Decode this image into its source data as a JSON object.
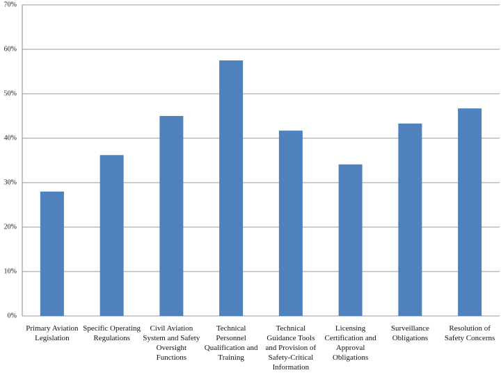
{
  "chart_data": {
    "type": "bar",
    "categories": [
      "Primary Aviation\nLegislation",
      "Specific Operating\nRegulations",
      "Civil Aviation\nSystem and Safety\nOversight\nFunctions",
      "Technical\nPersonnel\nQualification and\nTraining",
      "Technical\nGuidance Tools\nand Provision of\nSafety-Critical\nInformation",
      "Licensing\nCertification and\nApproval\nObligations",
      "Surveillance\nObligations",
      "Resolution of\nSafety Concerns"
    ],
    "values": [
      28,
      36.2,
      45,
      57.5,
      41.7,
      34.1,
      43.3,
      46.7
    ],
    "color": "#4f81bd",
    "ylim": [
      0,
      70
    ],
    "yticks": [
      {
        "value": 0,
        "label": "0%"
      },
      {
        "value": 10,
        "label": "10%"
      },
      {
        "value": 20,
        "label": "20%"
      },
      {
        "value": 30,
        "label": "30%"
      },
      {
        "value": 40,
        "label": "40%"
      },
      {
        "value": 50,
        "label": "50%"
      },
      {
        "value": 60,
        "label": "60%"
      },
      {
        "value": 70,
        "label": "70%"
      }
    ],
    "grid": true
  }
}
